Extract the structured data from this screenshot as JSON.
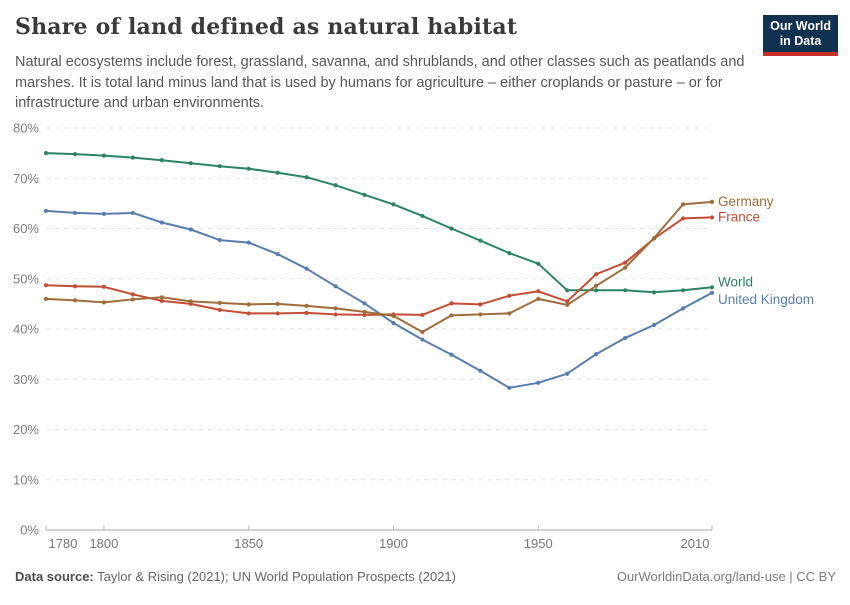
{
  "header": {
    "title": "Share of land defined as natural habitat",
    "subtitle": "Natural ecosystems include forest, grassland, savanna, and shrublands, and other classes such as peatlands and marshes. It is total land minus land that is used by humans for agriculture – either croplands or pasture – or for infrastructure and urban environments.",
    "logo": {
      "line1": "Our World",
      "line2": "in Data",
      "bg_color": "#12304F",
      "bar_color": "#C7302B"
    }
  },
  "chart_data": {
    "type": "line",
    "title": "Share of land defined as natural habitat",
    "xlabel": "",
    "ylabel": "",
    "x": [
      1780,
      1790,
      1800,
      1810,
      1820,
      1830,
      1840,
      1850,
      1860,
      1870,
      1880,
      1890,
      1900,
      1910,
      1920,
      1930,
      1940,
      1950,
      1960,
      1970,
      1980,
      1990,
      2000,
      2010
    ],
    "series": [
      {
        "name": "World",
        "color": "#2C8465",
        "label_dy": -5,
        "values": [
          75.0,
          74.8,
          74.5,
          74.1,
          73.6,
          73.0,
          72.4,
          71.9,
          71.1,
          70.2,
          68.6,
          66.7,
          64.8,
          62.5,
          60.0,
          57.6,
          55.1,
          53.0,
          47.7,
          47.7,
          47.7,
          47.3,
          47.7,
          48.3
        ]
      },
      {
        "name": "United Kingdom",
        "color": "#5A7DAF",
        "label_dy": 7,
        "values": [
          63.5,
          63.1,
          62.9,
          63.1,
          61.2,
          59.8,
          57.7,
          57.2,
          54.9,
          52.0,
          48.5,
          45.1,
          41.2,
          37.9,
          34.9,
          31.7,
          28.3,
          29.3,
          31.1,
          35.0,
          38.2,
          40.8,
          44.1,
          47.2
        ]
      },
      {
        "name": "France",
        "color": "#C44D35",
        "label_dy": 0,
        "values": [
          48.7,
          48.5,
          48.4,
          46.9,
          45.6,
          45.0,
          43.8,
          43.1,
          43.1,
          43.2,
          42.9,
          42.8,
          42.9,
          42.8,
          45.1,
          44.9,
          46.6,
          47.5,
          45.5,
          50.9,
          53.2,
          58.0,
          62.0,
          62.2
        ]
      },
      {
        "name": "Germany",
        "color": "#9E6D3C",
        "label_dy": 0,
        "values": [
          46.0,
          45.7,
          45.3,
          45.9,
          46.3,
          45.5,
          45.2,
          44.9,
          45.0,
          44.6,
          44.1,
          43.4,
          42.6,
          39.4,
          42.7,
          42.9,
          43.1,
          46.0,
          44.8,
          48.6,
          52.2,
          58.1,
          64.8,
          65.3
        ]
      }
    ],
    "ylim": [
      0,
      80
    ],
    "yticks": [
      0,
      10,
      20,
      30,
      40,
      50,
      60,
      70,
      80
    ],
    "ytick_suffix": "%",
    "xticks": [
      1780,
      1800,
      1850,
      1900,
      1950,
      2010
    ],
    "grid": "horizontal-dashed",
    "legend_position": "end-of-line-labels"
  },
  "footer": {
    "source_label": "Data source:",
    "source_text": " Taylor & Rising (2021); UN World Population Prospects (2021)",
    "link_text": "OurWorldinData.org/land-use | CC BY"
  }
}
